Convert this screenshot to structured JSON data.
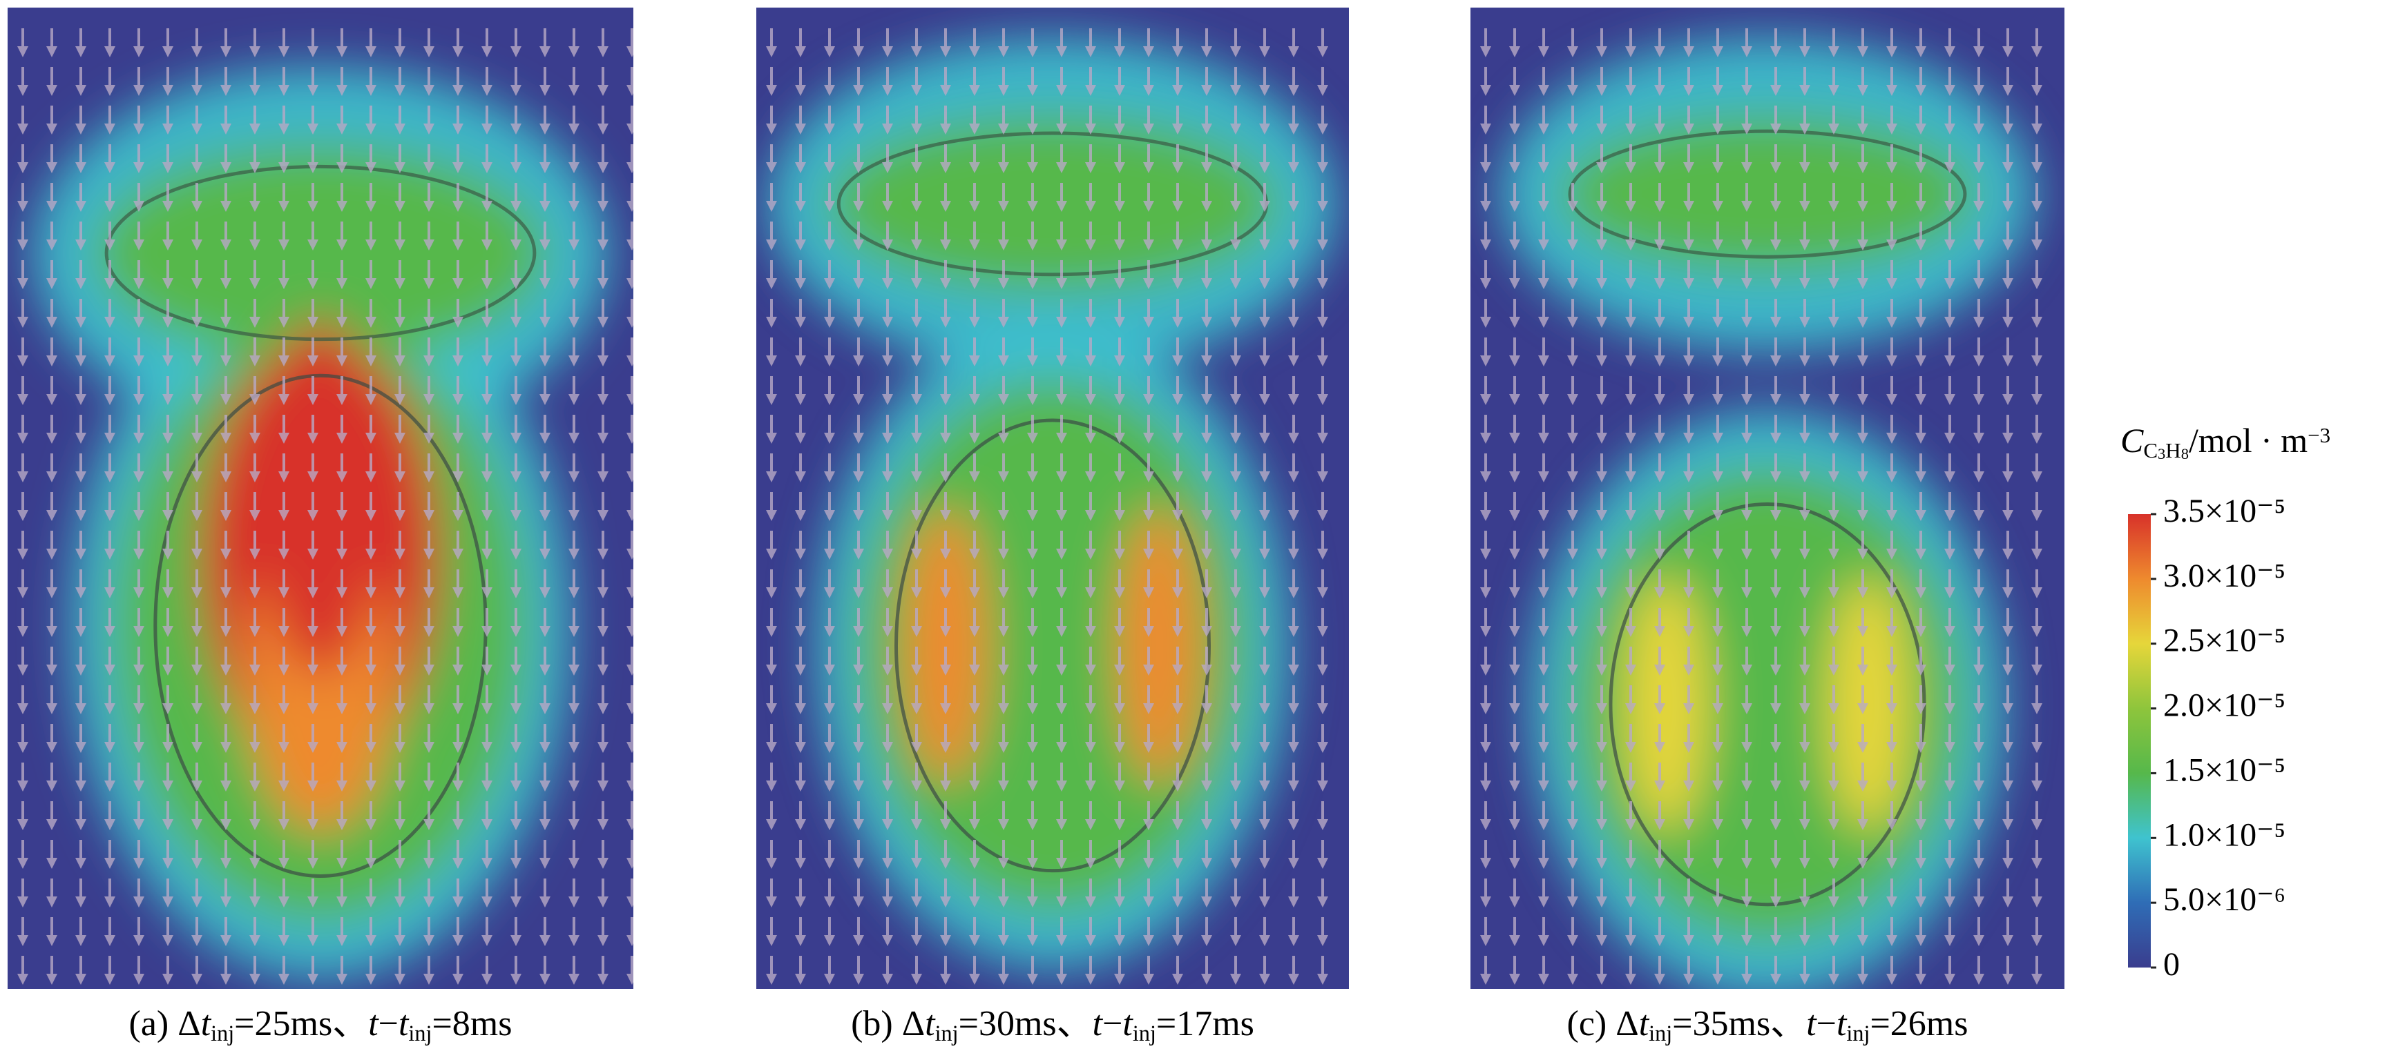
{
  "chart_data": {
    "type": "contour",
    "panels": [
      {
        "caption": [
          {
            "text": "(a) Δ"
          },
          {
            "text": "t",
            "italic": true
          },
          {
            "text": "inj",
            "sub": true
          },
          {
            "text": "=25ms、"
          },
          {
            "text": "t",
            "italic": true
          },
          {
            "text": "−"
          },
          {
            "text": "t",
            "italic": true
          },
          {
            "text": "inj",
            "sub": true
          },
          {
            "text": "=8ms"
          }
        ]
      },
      {
        "caption": [
          {
            "text": "(b) Δ"
          },
          {
            "text": "t",
            "italic": true
          },
          {
            "text": "inj",
            "sub": true
          },
          {
            "text": "=30ms、"
          },
          {
            "text": "t",
            "italic": true
          },
          {
            "text": "−"
          },
          {
            "text": "t",
            "italic": true
          },
          {
            "text": "inj",
            "sub": true
          },
          {
            "text": "=17ms"
          }
        ]
      },
      {
        "caption": [
          {
            "text": "(c) Δ"
          },
          {
            "text": "t",
            "italic": true
          },
          {
            "text": "inj",
            "sub": true
          },
          {
            "text": "=35ms、"
          },
          {
            "text": "t",
            "italic": true
          },
          {
            "text": "−"
          },
          {
            "text": "t",
            "italic": true
          },
          {
            "text": "inj",
            "sub": true
          },
          {
            "text": "=26ms"
          }
        ]
      }
    ],
    "colorbar": {
      "title": [
        {
          "text": "C",
          "italic": true
        },
        {
          "text": "C",
          "sub": true
        },
        {
          "text": "3",
          "subsub": true
        },
        {
          "text": "H",
          "sub": true
        },
        {
          "text": "8",
          "subsub": true
        },
        {
          "text": "/mol · m"
        },
        {
          "text": "−3",
          "sup": true
        }
      ],
      "lim": [
        0,
        3.5e-05
      ],
      "ticks": [
        0,
        {
          "value": 5e-06,
          "label": "5.0×10⁻⁶"
        },
        {
          "value": 1e-05,
          "label": "1.0×10⁻⁵"
        },
        {
          "value": 1.5e-05,
          "label": "1.5×10⁻⁵"
        },
        {
          "value": 2e-05,
          "label": "2.0×10⁻⁵"
        },
        {
          "value": 2.5e-05,
          "label": "2.5×10⁻⁵"
        },
        {
          "value": 3e-05,
          "label": "3.0×10⁻⁵"
        },
        {
          "value": 3.5e-05,
          "label": "3.5×10⁻⁵"
        }
      ],
      "colors": [
        "#3a3d8e",
        "#2f6db6",
        "#3fc3cf",
        "#56b84b",
        "#8ec53c",
        "#e6d63a",
        "#ee8a2e",
        "#d8322a"
      ]
    }
  }
}
